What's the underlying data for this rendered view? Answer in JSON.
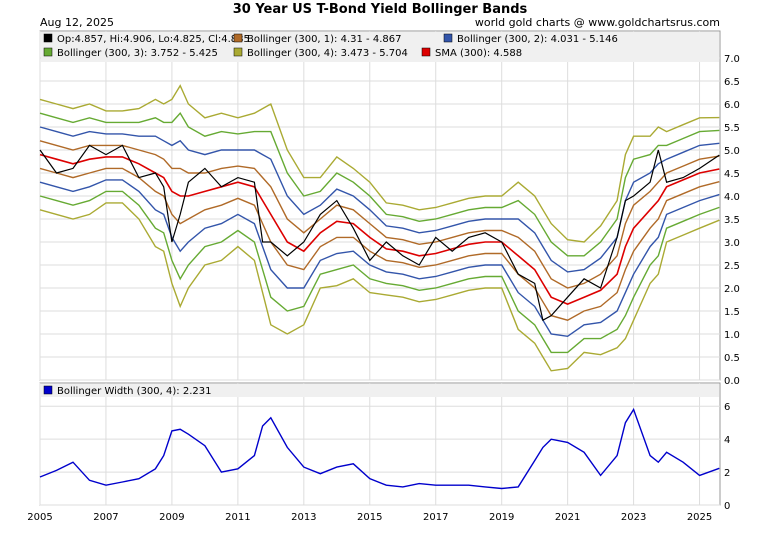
{
  "header": {
    "title": "30 Year US T-Bond Yield Bollinger Bands",
    "date": "Aug 12, 2025",
    "source": "world gold charts @ www.goldchartsrus.com"
  },
  "legend_main": [
    {
      "label": "Op:4.857, Hi:4.906, Lo:4.825, Cl:4.885",
      "color": "#000000"
    },
    {
      "label": "Bollinger (300, 1): 4.31 - 4.867",
      "color": "#b06a28"
    },
    {
      "label": "Bollinger (300, 2): 4.031 - 5.146",
      "color": "#3355aa"
    },
    {
      "label": "Bollinger (300, 3): 3.752 - 5.425",
      "color": "#66aa33"
    },
    {
      "label": "Bollinger (300, 4): 3.473 - 5.704",
      "color": "#aaaa33"
    },
    {
      "label": "SMA (300): 4.588",
      "color": "#dd0000"
    }
  ],
  "legend_lower": [
    {
      "label": "Bollinger Width (300, 4): 2.231",
      "color": "#0000cc"
    }
  ],
  "chart_data": [
    {
      "type": "line",
      "title": "30 Year US T-Bond Yield Bollinger Bands",
      "x_unit": "year",
      "xlim": [
        2005.0,
        2025.62
      ],
      "ylim": [
        0,
        7
      ],
      "y_ticks": [
        "0.0",
        "0.5",
        "1.0",
        "1.5",
        "2.0",
        "2.5",
        "3.0",
        "3.5",
        "4.0",
        "4.5",
        "5.0",
        "5.5",
        "6.0",
        "6.5",
        "7.0"
      ],
      "x_ticks": [
        "2005",
        "2007",
        "2009",
        "2011",
        "2013",
        "2015",
        "2017",
        "2019",
        "2021",
        "2023",
        "2025"
      ],
      "grid": true,
      "legend_position": "top-left",
      "x": [
        2005.0,
        2005.5,
        2006.0,
        2006.5,
        2007.0,
        2007.5,
        2008.0,
        2008.5,
        2008.75,
        2009.0,
        2009.25,
        2009.5,
        2010.0,
        2010.5,
        2011.0,
        2011.5,
        2011.75,
        2012.0,
        2012.5,
        2013.0,
        2013.5,
        2014.0,
        2014.5,
        2015.0,
        2015.5,
        2016.0,
        2016.5,
        2017.0,
        2017.5,
        2018.0,
        2018.5,
        2019.0,
        2019.5,
        2020.0,
        2020.25,
        2020.5,
        2021.0,
        2021.5,
        2022.0,
        2022.5,
        2022.75,
        2023.0,
        2023.5,
        2023.75,
        2024.0,
        2024.5,
        2025.0,
        2025.6
      ],
      "series": [
        {
          "name": "Close",
          "color": "#000000",
          "values": [
            5.0,
            4.5,
            4.6,
            5.1,
            4.9,
            5.1,
            4.4,
            4.5,
            4.2,
            3.0,
            3.6,
            4.3,
            4.6,
            4.2,
            4.4,
            4.3,
            3.0,
            3.0,
            2.7,
            3.0,
            3.6,
            3.9,
            3.3,
            2.6,
            3.0,
            2.7,
            2.5,
            3.1,
            2.8,
            3.1,
            3.2,
            3.0,
            2.3,
            2.1,
            1.3,
            1.4,
            1.8,
            2.2,
            2.0,
            3.1,
            3.9,
            4.0,
            4.3,
            5.0,
            4.3,
            4.4,
            4.6,
            4.89
          ]
        },
        {
          "name": "SMA (300)",
          "color": "#dd0000",
          "values": [
            4.9,
            4.8,
            4.7,
            4.8,
            4.85,
            4.85,
            4.7,
            4.5,
            4.4,
            4.1,
            4.0,
            4.0,
            4.1,
            4.2,
            4.3,
            4.2,
            3.9,
            3.6,
            3.0,
            2.8,
            3.2,
            3.45,
            3.4,
            3.1,
            2.85,
            2.8,
            2.7,
            2.75,
            2.85,
            2.95,
            3.0,
            3.0,
            2.7,
            2.4,
            2.1,
            1.8,
            1.65,
            1.8,
            1.95,
            2.3,
            2.9,
            3.3,
            3.7,
            3.9,
            4.2,
            4.35,
            4.5,
            4.588
          ]
        },
        {
          "name": "Bollinger (300, 1)",
          "color": "#b06a28",
          "upper": [
            5.2,
            5.1,
            5.0,
            5.1,
            5.1,
            5.1,
            5.0,
            4.9,
            4.8,
            4.6,
            4.6,
            4.5,
            4.5,
            4.6,
            4.65,
            4.6,
            4.4,
            4.2,
            3.5,
            3.2,
            3.5,
            3.8,
            3.7,
            3.4,
            3.1,
            3.05,
            2.95,
            3.0,
            3.1,
            3.2,
            3.25,
            3.25,
            3.1,
            2.8,
            2.5,
            2.2,
            2.0,
            2.1,
            2.3,
            2.7,
            3.4,
            3.8,
            4.1,
            4.3,
            4.5,
            4.65,
            4.8,
            4.867
          ],
          "lower": [
            4.6,
            4.5,
            4.4,
            4.5,
            4.6,
            4.6,
            4.4,
            4.1,
            4.0,
            3.6,
            3.4,
            3.5,
            3.7,
            3.8,
            3.95,
            3.8,
            3.4,
            3.0,
            2.5,
            2.4,
            2.9,
            3.1,
            3.1,
            2.8,
            2.6,
            2.55,
            2.45,
            2.5,
            2.6,
            2.7,
            2.75,
            2.75,
            2.3,
            2.0,
            1.7,
            1.4,
            1.3,
            1.5,
            1.6,
            1.9,
            2.4,
            2.8,
            3.3,
            3.5,
            3.9,
            4.05,
            4.2,
            4.31
          ]
        },
        {
          "name": "Bollinger (300, 2)",
          "color": "#3355aa",
          "upper": [
            5.5,
            5.4,
            5.3,
            5.4,
            5.35,
            5.35,
            5.3,
            5.3,
            5.2,
            5.1,
            5.2,
            5.0,
            4.9,
            5.0,
            5.0,
            5.0,
            4.9,
            4.8,
            4.0,
            3.6,
            3.8,
            4.15,
            4.0,
            3.7,
            3.35,
            3.3,
            3.2,
            3.25,
            3.35,
            3.45,
            3.5,
            3.5,
            3.5,
            3.2,
            2.9,
            2.6,
            2.35,
            2.4,
            2.65,
            3.1,
            3.9,
            4.3,
            4.5,
            4.7,
            4.8,
            4.95,
            5.1,
            5.146
          ],
          "lower": [
            4.3,
            4.2,
            4.1,
            4.2,
            4.35,
            4.35,
            4.1,
            3.7,
            3.6,
            3.1,
            2.8,
            3.0,
            3.3,
            3.4,
            3.6,
            3.4,
            2.9,
            2.4,
            2.0,
            2.0,
            2.6,
            2.75,
            2.8,
            2.5,
            2.35,
            2.3,
            2.2,
            2.25,
            2.35,
            2.45,
            2.5,
            2.5,
            1.9,
            1.6,
            1.3,
            1.0,
            0.95,
            1.2,
            1.25,
            1.5,
            1.9,
            2.3,
            2.9,
            3.1,
            3.6,
            3.75,
            3.9,
            4.031
          ]
        },
        {
          "name": "Bollinger (300, 3)",
          "color": "#66aa33",
          "upper": [
            5.8,
            5.7,
            5.6,
            5.7,
            5.6,
            5.6,
            5.6,
            5.7,
            5.6,
            5.6,
            5.8,
            5.5,
            5.3,
            5.4,
            5.35,
            5.4,
            5.4,
            5.4,
            4.5,
            4.0,
            4.1,
            4.5,
            4.3,
            4.0,
            3.6,
            3.55,
            3.45,
            3.5,
            3.6,
            3.7,
            3.75,
            3.75,
            3.9,
            3.6,
            3.3,
            3.0,
            2.7,
            2.7,
            3.0,
            3.5,
            4.4,
            4.8,
            4.9,
            5.1,
            5.1,
            5.25,
            5.4,
            5.425
          ],
          "lower": [
            4.0,
            3.9,
            3.8,
            3.9,
            4.1,
            4.1,
            3.8,
            3.3,
            3.2,
            2.6,
            2.2,
            2.5,
            2.9,
            3.0,
            3.25,
            3.0,
            2.4,
            1.8,
            1.5,
            1.6,
            2.3,
            2.4,
            2.5,
            2.2,
            2.1,
            2.05,
            1.95,
            2.0,
            2.1,
            2.2,
            2.25,
            2.25,
            1.5,
            1.2,
            0.9,
            0.6,
            0.6,
            0.9,
            0.9,
            1.1,
            1.4,
            1.8,
            2.5,
            2.7,
            3.3,
            3.45,
            3.6,
            3.752
          ]
        },
        {
          "name": "Bollinger (300, 4)",
          "color": "#aaaa33",
          "upper": [
            6.1,
            6.0,
            5.9,
            6.0,
            5.85,
            5.85,
            5.9,
            6.1,
            6.0,
            6.1,
            6.4,
            6.0,
            5.7,
            5.8,
            5.7,
            5.8,
            5.9,
            6.0,
            5.0,
            4.4,
            4.4,
            4.85,
            4.6,
            4.3,
            3.85,
            3.8,
            3.7,
            3.75,
            3.85,
            3.95,
            4.0,
            4.0,
            4.3,
            4.0,
            3.7,
            3.4,
            3.05,
            3.0,
            3.35,
            3.9,
            4.9,
            5.3,
            5.3,
            5.5,
            5.4,
            5.55,
            5.7,
            5.704
          ],
          "lower": [
            3.7,
            3.6,
            3.5,
            3.6,
            3.85,
            3.85,
            3.5,
            2.9,
            2.8,
            2.1,
            1.6,
            2.0,
            2.5,
            2.6,
            2.9,
            2.6,
            1.9,
            1.2,
            1.0,
            1.2,
            2.0,
            2.05,
            2.2,
            1.9,
            1.85,
            1.8,
            1.7,
            1.75,
            1.85,
            1.95,
            2.0,
            2.0,
            1.1,
            0.8,
            0.5,
            0.2,
            0.25,
            0.6,
            0.55,
            0.7,
            0.9,
            1.3,
            2.1,
            2.3,
            3.0,
            3.15,
            3.3,
            3.473
          ]
        }
      ]
    },
    {
      "type": "line",
      "title": "Bollinger Width (300, 4)",
      "x_unit": "year",
      "xlim": [
        2005.0,
        2025.62
      ],
      "ylim": [
        0,
        6.5
      ],
      "y_ticks": [
        "0",
        "2",
        "4",
        "6"
      ],
      "grid": true,
      "x": [
        2005.0,
        2005.5,
        2006.0,
        2006.5,
        2007.0,
        2007.5,
        2008.0,
        2008.5,
        2008.75,
        2009.0,
        2009.25,
        2009.5,
        2010.0,
        2010.5,
        2011.0,
        2011.5,
        2011.75,
        2012.0,
        2012.5,
        2013.0,
        2013.5,
        2014.0,
        2014.5,
        2015.0,
        2015.5,
        2016.0,
        2016.5,
        2017.0,
        2017.5,
        2018.0,
        2018.5,
        2019.0,
        2019.5,
        2020.0,
        2020.25,
        2020.5,
        2021.0,
        2021.5,
        2022.0,
        2022.5,
        2022.75,
        2023.0,
        2023.5,
        2023.75,
        2024.0,
        2024.5,
        2025.0,
        2025.6
      ],
      "series": [
        {
          "name": "Bollinger Width (300, 4)",
          "color": "#0000cc",
          "values": [
            1.7,
            2.1,
            2.6,
            1.5,
            1.2,
            1.4,
            1.6,
            2.2,
            3.0,
            4.5,
            4.6,
            4.3,
            3.6,
            2.0,
            2.2,
            3.0,
            4.8,
            5.3,
            3.5,
            2.3,
            1.9,
            2.3,
            2.5,
            1.6,
            1.2,
            1.1,
            1.3,
            1.2,
            1.2,
            1.2,
            1.1,
            1.0,
            1.1,
            2.7,
            3.5,
            4.0,
            3.8,
            3.2,
            1.8,
            3.0,
            5.0,
            5.8,
            3.0,
            2.6,
            3.2,
            2.6,
            1.8,
            2.231
          ]
        }
      ]
    }
  ]
}
